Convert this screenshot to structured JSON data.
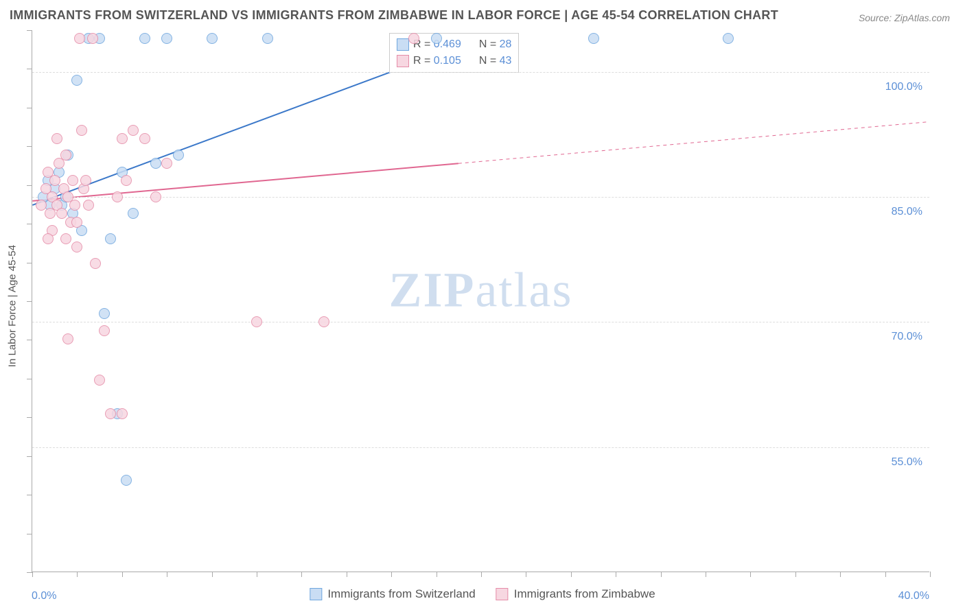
{
  "title": "IMMIGRANTS FROM SWITZERLAND VS IMMIGRANTS FROM ZIMBABWE IN LABOR FORCE | AGE 45-54 CORRELATION CHART",
  "source": "Source: ZipAtlas.com",
  "watermark": {
    "bold": "ZIP",
    "light": "atlas"
  },
  "ylabel": "In Labor Force | Age 45-54",
  "chart": {
    "type": "scatter",
    "xlim": [
      0,
      40
    ],
    "ylim": [
      40,
      105
    ],
    "xticks": [
      0,
      40
    ],
    "xtick_labels": [
      "0.0%",
      "40.0%"
    ],
    "yticks": [
      55,
      70,
      85,
      100
    ],
    "ytick_labels": [
      "55.0%",
      "70.0%",
      "85.0%",
      "100.0%"
    ],
    "minor_xticks_count": 20,
    "minor_yticks_count": 14,
    "background_color": "#ffffff",
    "grid_color": "#dddddd",
    "axis_color": "#aaaaaa",
    "label_color": "#5b8fd6",
    "text_color": "#555555",
    "title_fontsize": 18,
    "label_fontsize": 16,
    "marker_size": 16
  },
  "series": [
    {
      "name": "Immigrants from Switzerland",
      "color_fill": "#c9ddf4",
      "color_stroke": "#6fa6de",
      "r_value": "0.469",
      "n_value": "28",
      "trend": {
        "x1": 0,
        "y1": 84,
        "x2_solid": 18,
        "y2_solid": 102,
        "x2_dash": 18,
        "y2_dash": 102,
        "line_color": "#3b78c9",
        "line_width": 2
      },
      "points": [
        [
          0.5,
          85
        ],
        [
          0.7,
          87
        ],
        [
          0.8,
          84
        ],
        [
          1.0,
          86
        ],
        [
          1.2,
          88
        ],
        [
          1.3,
          84
        ],
        [
          1.5,
          85
        ],
        [
          1.6,
          90
        ],
        [
          1.8,
          83
        ],
        [
          2.0,
          99
        ],
        [
          2.2,
          81
        ],
        [
          2.5,
          104
        ],
        [
          3.0,
          104
        ],
        [
          3.2,
          71
        ],
        [
          3.5,
          80
        ],
        [
          4.0,
          88
        ],
        [
          4.2,
          51
        ],
        [
          4.5,
          83
        ],
        [
          5.0,
          104
        ],
        [
          5.5,
          89
        ],
        [
          6.0,
          104
        ],
        [
          6.5,
          90
        ],
        [
          8.0,
          104
        ],
        [
          10.5,
          104
        ],
        [
          18.0,
          104
        ],
        [
          25.0,
          104
        ],
        [
          31.0,
          104
        ],
        [
          3.8,
          59
        ]
      ]
    },
    {
      "name": "Immigrants from Zimbabwe",
      "color_fill": "#f7d7e1",
      "color_stroke": "#e58ca8",
      "r_value": "0.105",
      "n_value": "43",
      "trend": {
        "x1": 0,
        "y1": 84.5,
        "x2_solid": 19,
        "y2_solid": 89,
        "x2_dash": 40,
        "y2_dash": 94,
        "line_color": "#e06690",
        "line_width": 2
      },
      "points": [
        [
          0.4,
          84
        ],
        [
          0.6,
          86
        ],
        [
          0.7,
          88
        ],
        [
          0.8,
          83
        ],
        [
          0.9,
          85
        ],
        [
          1.0,
          87
        ],
        [
          1.1,
          84
        ],
        [
          1.2,
          89
        ],
        [
          1.3,
          83
        ],
        [
          1.4,
          86
        ],
        [
          1.5,
          90
        ],
        [
          1.6,
          85
        ],
        [
          1.7,
          82
        ],
        [
          1.8,
          87
        ],
        [
          1.9,
          84
        ],
        [
          2.0,
          79
        ],
        [
          2.1,
          104
        ],
        [
          2.2,
          93
        ],
        [
          2.3,
          86
        ],
        [
          2.5,
          84
        ],
        [
          2.7,
          104
        ],
        [
          2.8,
          77
        ],
        [
          3.0,
          63
        ],
        [
          3.2,
          69
        ],
        [
          3.5,
          59
        ],
        [
          3.8,
          85
        ],
        [
          4.0,
          92
        ],
        [
          4.2,
          87
        ],
        [
          4.5,
          93
        ],
        [
          5.0,
          92
        ],
        [
          5.5,
          85
        ],
        [
          6.0,
          89
        ],
        [
          1.5,
          80
        ],
        [
          2.0,
          82
        ],
        [
          2.4,
          87
        ],
        [
          0.9,
          81
        ],
        [
          1.1,
          92
        ],
        [
          10.0,
          70
        ],
        [
          13.0,
          70
        ],
        [
          17.0,
          104
        ],
        [
          1.6,
          68
        ],
        [
          4.0,
          59
        ],
        [
          0.7,
          80
        ]
      ]
    }
  ],
  "legend_box": {
    "rows": [
      {
        "series": 0,
        "r_label": "R =",
        "n_label": "N ="
      },
      {
        "series": 1,
        "r_label": "R =",
        "n_label": "N ="
      }
    ]
  }
}
